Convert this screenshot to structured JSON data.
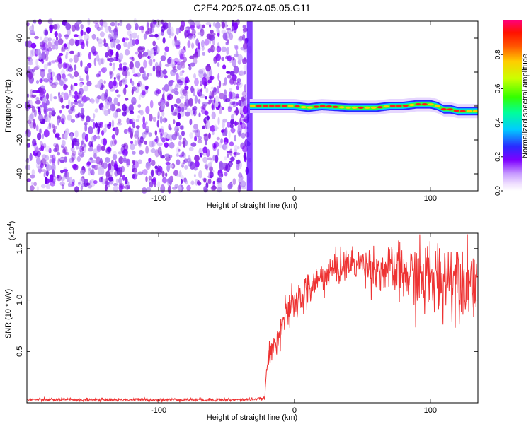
{
  "title": "C2E4.2025.074.05.05.G11",
  "colors": {
    "snr_line": "#ee3333",
    "noise_purple": "#7f00ff",
    "background": "#ffffff"
  },
  "chart_data": [
    {
      "type": "heatmap",
      "name": "spectrogram",
      "xlabel": "Height of straight line (km)",
      "ylabel": "Frequency (Hz)",
      "xlim": [
        -197,
        135
      ],
      "ylim": [
        -50,
        50
      ],
      "x_ticks": [
        -100,
        0,
        100
      ],
      "y_ticks": [
        -40,
        -20,
        0,
        20,
        40
      ],
      "noise_region_x": [
        -197,
        -33
      ],
      "signal_region_x": [
        -33,
        135
      ],
      "doppler_track": [
        {
          "x": -30,
          "y": 0
        },
        {
          "x": -10,
          "y": 0
        },
        {
          "x": 0,
          "y": 0
        },
        {
          "x": 10,
          "y": -1
        },
        {
          "x": 20,
          "y": 0
        },
        {
          "x": 40,
          "y": -1
        },
        {
          "x": 60,
          "y": -1
        },
        {
          "x": 70,
          "y": 0
        },
        {
          "x": 80,
          "y": 0
        },
        {
          "x": 90,
          "y": 1
        },
        {
          "x": 100,
          "y": 1
        },
        {
          "x": 105,
          "y": 0
        },
        {
          "x": 110,
          "y": -2
        },
        {
          "x": 115,
          "y": -2
        },
        {
          "x": 120,
          "y": -3
        },
        {
          "x": 135,
          "y": -3
        }
      ],
      "colorbar": {
        "label": "Normalized spectral amplitude",
        "ticks": [
          "0.0",
          "0.2",
          "0.4",
          "0.6",
          "0.8"
        ],
        "range": [
          0,
          1
        ],
        "colormap": "rainbow"
      }
    },
    {
      "type": "line",
      "name": "snr",
      "xlabel": "Height of straight line (km)",
      "ylabel": "SNR (10 * v/v)",
      "scale_note": "(x10",
      "scale_exponent": "4",
      "xlim": [
        -197,
        135
      ],
      "ylim": [
        0,
        1.65
      ],
      "x_ticks": [
        -100,
        0,
        100
      ],
      "y_ticks": [
        "0.5",
        "1.0",
        "1.5"
      ],
      "trend": [
        {
          "x": -197,
          "y": 0.03
        },
        {
          "x": -40,
          "y": 0.03
        },
        {
          "x": -22,
          "y": 0.04
        },
        {
          "x": -20,
          "y": 0.4
        },
        {
          "x": -15,
          "y": 0.55
        },
        {
          "x": -10,
          "y": 0.75
        },
        {
          "x": -5,
          "y": 0.88
        },
        {
          "x": 0,
          "y": 0.95
        },
        {
          "x": 10,
          "y": 1.1
        },
        {
          "x": 20,
          "y": 1.22
        },
        {
          "x": 30,
          "y": 1.3
        },
        {
          "x": 40,
          "y": 1.35
        },
        {
          "x": 50,
          "y": 1.35
        },
        {
          "x": 60,
          "y": 1.3
        },
        {
          "x": 70,
          "y": 1.28
        },
        {
          "x": 80,
          "y": 1.25
        },
        {
          "x": 90,
          "y": 1.22
        },
        {
          "x": 100,
          "y": 1.2
        },
        {
          "x": 110,
          "y": 1.22
        },
        {
          "x": 120,
          "y": 1.25
        },
        {
          "x": 135,
          "y": 1.18
        }
      ],
      "noise_amplitude": [
        {
          "x": -197,
          "a": 0.008
        },
        {
          "x": -22,
          "a": 0.008
        },
        {
          "x": -20,
          "a": 0.06
        },
        {
          "x": 0,
          "a": 0.1
        },
        {
          "x": 40,
          "a": 0.08
        },
        {
          "x": 70,
          "a": 0.12
        },
        {
          "x": 100,
          "a": 0.2
        },
        {
          "x": 135,
          "a": 0.18
        }
      ]
    }
  ]
}
